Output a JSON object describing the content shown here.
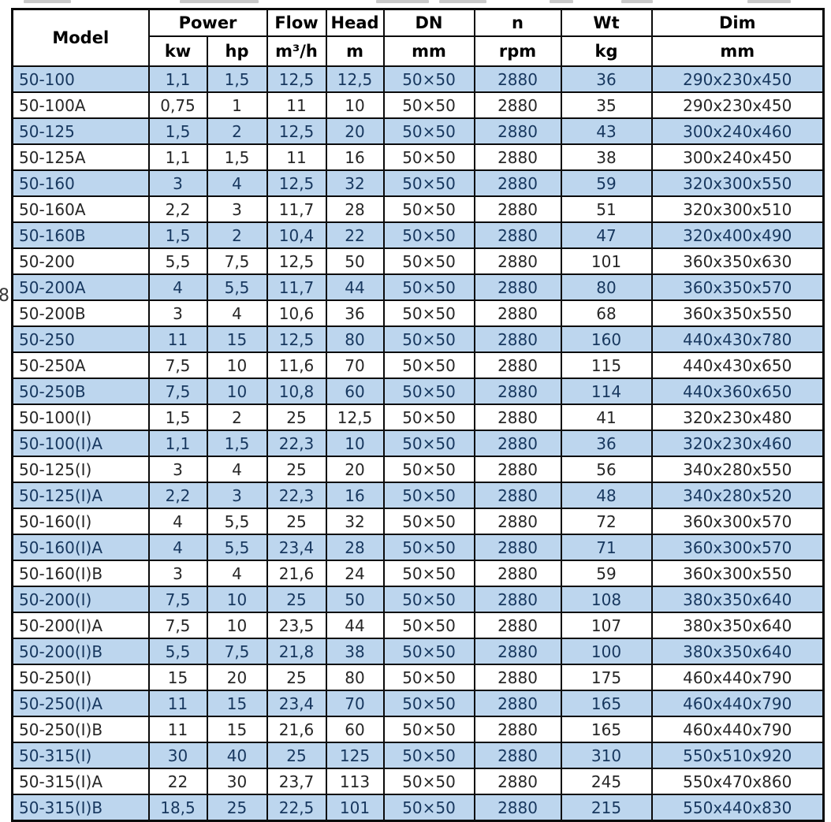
{
  "page": {
    "margin_text": "8"
  },
  "colors": {
    "row_blue": "#BDD6EE",
    "row_white": "#FFFFFF",
    "text_blue_row": "#17375E",
    "text_white_row": "#262626",
    "border": "#0B0B0B",
    "header_text": "#000000"
  },
  "table": {
    "header": {
      "model": "Model",
      "power": "Power",
      "kw": "kw",
      "hp": "hp",
      "flow": "Flow",
      "flow_unit": "m³/h",
      "head": "Head",
      "head_unit": "m",
      "dn": "DN",
      "dn_unit": "mm",
      "n": "n",
      "n_unit": "rpm",
      "wt": "Wt",
      "wt_unit": "kg",
      "dim": "Dim",
      "dim_unit": "mm"
    },
    "rows": [
      [
        "50-100",
        "1,1",
        "1,5",
        "12,5",
        "12,5",
        "50×50",
        "2880",
        "36",
        "290x230x450"
      ],
      [
        "50-100A",
        "0,75",
        "1",
        "11",
        "10",
        "50×50",
        "2880",
        "35",
        "290x230x450"
      ],
      [
        "50-125",
        "1,5",
        "2",
        "12,5",
        "20",
        "50×50",
        "2880",
        "43",
        "300x240x460"
      ],
      [
        "50-125A",
        "1,1",
        "1,5",
        "11",
        "16",
        "50×50",
        "2880",
        "38",
        "300x240x450"
      ],
      [
        "50-160",
        "3",
        "4",
        "12,5",
        "32",
        "50×50",
        "2880",
        "59",
        "320x300x550"
      ],
      [
        "50-160A",
        "2,2",
        "3",
        "11,7",
        "28",
        "50×50",
        "2880",
        "51",
        "320x300x510"
      ],
      [
        "50-160B",
        "1,5",
        "2",
        "10,4",
        "22",
        "50×50",
        "2880",
        "47",
        "320x400x490"
      ],
      [
        "50-200",
        "5,5",
        "7,5",
        "12,5",
        "50",
        "50×50",
        "2880",
        "101",
        "360x350x630"
      ],
      [
        "50-200A",
        "4",
        "5,5",
        "11,7",
        "44",
        "50×50",
        "2880",
        "80",
        "360x350x570"
      ],
      [
        "50-200B",
        "3",
        "4",
        "10,6",
        "36",
        "50×50",
        "2880",
        "68",
        "360x350x550"
      ],
      [
        "50-250",
        "11",
        "15",
        "12,5",
        "80",
        "50×50",
        "2880",
        "160",
        "440x430x780"
      ],
      [
        "50-250A",
        "7,5",
        "10",
        "11,6",
        "70",
        "50×50",
        "2880",
        "115",
        "440x430x650"
      ],
      [
        "50-250B",
        "7,5",
        "10",
        "10,8",
        "60",
        "50×50",
        "2880",
        "114",
        "440x360x650"
      ],
      [
        "50-100(I)",
        "1,5",
        "2",
        "25",
        "12,5",
        "50×50",
        "2880",
        "41",
        "320x230x480"
      ],
      [
        "50-100(I)A",
        "1,1",
        "1,5",
        "22,3",
        "10",
        "50×50",
        "2880",
        "36",
        "320x230x460"
      ],
      [
        "50-125(I)",
        "3",
        "4",
        "25",
        "20",
        "50×50",
        "2880",
        "56",
        "340x280x550"
      ],
      [
        "50-125(I)A",
        "2,2",
        "3",
        "22,3",
        "16",
        "50×50",
        "2880",
        "48",
        "340x280x520"
      ],
      [
        "50-160(I)",
        "4",
        "5,5",
        "25",
        "32",
        "50×50",
        "2880",
        "72",
        "360x300x570"
      ],
      [
        "50-160(I)A",
        "4",
        "5,5",
        "23,4",
        "28",
        "50×50",
        "2880",
        "71",
        "360x300x570"
      ],
      [
        "50-160(I)B",
        "3",
        "4",
        "21,6",
        "24",
        "50×50",
        "2880",
        "59",
        "360x300x550"
      ],
      [
        "50-200(I)",
        "7,5",
        "10",
        "25",
        "50",
        "50×50",
        "2880",
        "108",
        "380x350x640"
      ],
      [
        "50-200(I)A",
        "7,5",
        "10",
        "23,5",
        "44",
        "50×50",
        "2880",
        "107",
        "380x350x640"
      ],
      [
        "50-200(I)B",
        "5,5",
        "7,5",
        "21,8",
        "38",
        "50×50",
        "2880",
        "100",
        "380x350x640"
      ],
      [
        "50-250(I)",
        "15",
        "20",
        "25",
        "80",
        "50×50",
        "2880",
        "175",
        "460x440x790"
      ],
      [
        "50-250(I)A",
        "11",
        "15",
        "23,4",
        "70",
        "50×50",
        "2880",
        "165",
        "460x440x790"
      ],
      [
        "50-250(I)B",
        "11",
        "15",
        "21,6",
        "60",
        "50×50",
        "2880",
        "165",
        "460x440x790"
      ],
      [
        "50-315(I)",
        "30",
        "40",
        "25",
        "125",
        "50×50",
        "2880",
        "310",
        "550x510x920"
      ],
      [
        "50-315(I)A",
        "22",
        "30",
        "23,7",
        "113",
        "50×50",
        "2880",
        "245",
        "550x470x860"
      ],
      [
        "50-315(I)B",
        "18,5",
        "25",
        "22,5",
        "101",
        "50×50",
        "2880",
        "215",
        "550x440x830"
      ]
    ]
  }
}
